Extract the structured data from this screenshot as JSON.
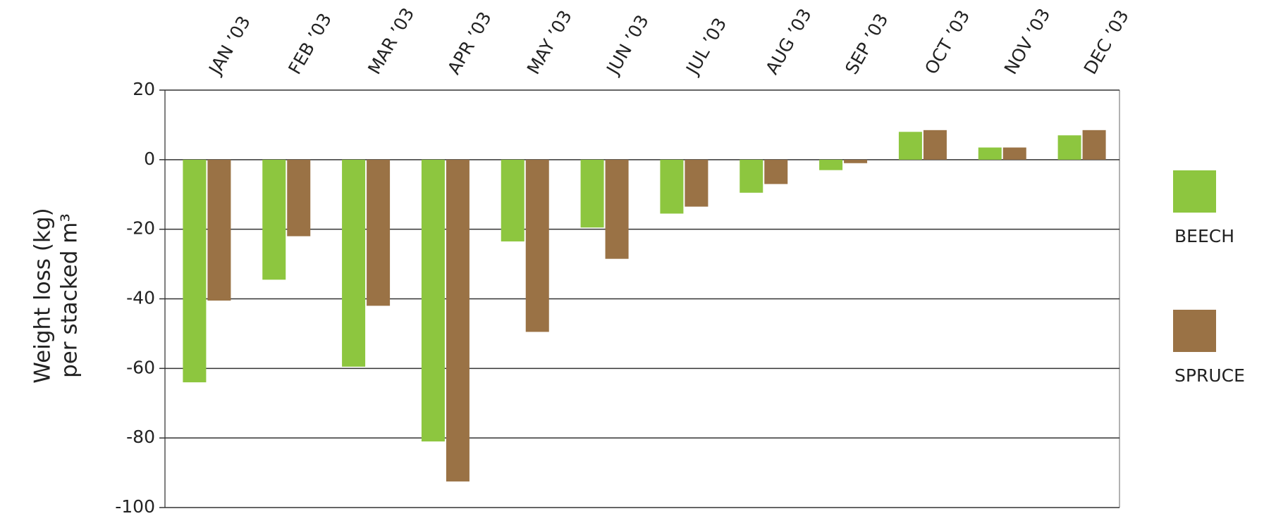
{
  "chart_data": {
    "type": "bar",
    "y_label": [
      "Weight loss (kg)",
      "per stacked m³"
    ],
    "categories": [
      "JAN ’03",
      "FEB ’03",
      "MAR ’03",
      "APR ’03",
      "MAY ’03",
      "JUN ’03",
      "JUL ’03",
      "AUG ’03",
      "SEP ’03",
      "OCT ’03",
      "NOV ’03",
      "DEC ’03"
    ],
    "series": [
      {
        "name": "BEECH",
        "color": "#8dc63f",
        "values": [
          -64,
          -34.5,
          -59.5,
          -81,
          -23.5,
          -19.5,
          -15.5,
          -9.5,
          -3,
          8,
          3.5,
          7
        ]
      },
      {
        "name": "SPRUCE",
        "color": "#9a7245",
        "values": [
          -40.5,
          -22,
          -42,
          -92.5,
          -49.5,
          -28.5,
          -13.5,
          -7,
          -1,
          8.5,
          3.5,
          8.5
        ]
      }
    ],
    "ylim": [
      -100,
      20
    ],
    "yticks": [
      -100,
      -80,
      -60,
      -40,
      -20,
      0,
      20
    ],
    "grid": true,
    "legend": "right"
  }
}
